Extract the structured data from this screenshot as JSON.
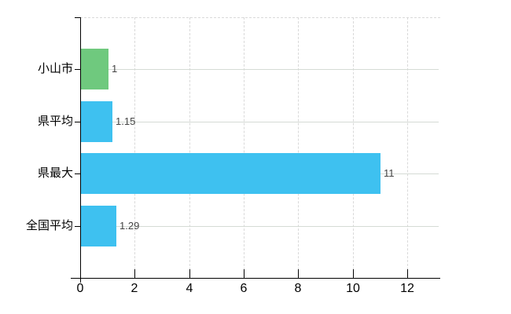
{
  "chart_data": {
    "type": "bar",
    "orientation": "horizontal",
    "title": "",
    "xlabel": "",
    "ylabel": "",
    "categories": [
      "小山市",
      "県平均",
      "県最大",
      "全国平均"
    ],
    "values": [
      1,
      1.15,
      11,
      1.29
    ],
    "value_labels": [
      "1",
      "1.15",
      "11",
      "1.29"
    ],
    "bar_colors": [
      "#6fc97e",
      "#3ec1f0",
      "#3ec1f0",
      "#3ec1f0"
    ],
    "x_ticks": [
      "0",
      "2",
      "4",
      "6",
      "8",
      "10",
      "12"
    ],
    "x_tick_values": [
      0,
      2,
      4,
      6,
      8,
      10,
      12
    ],
    "xlim": [
      0,
      13.2
    ],
    "grid": true,
    "legend": "none",
    "colors": {
      "background": "#ffffff",
      "green_bar": "#6fc97e",
      "blue_bar": "#3ec1f0",
      "axis": "#000000",
      "grid_vertical_dashed": "#d9d9d9",
      "grid_horizontal_solid": "#d5dbd5",
      "tick_label": "#000000",
      "value_label": "#444444"
    }
  }
}
